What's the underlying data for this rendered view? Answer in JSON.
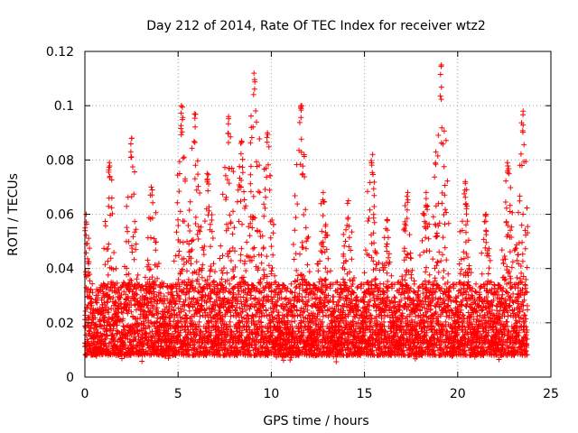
{
  "chart_data": {
    "type": "scatter",
    "title": "Day 212 of 2014, Rate Of TEC Index for receiver wtz2",
    "xlabel": "GPS time / hours",
    "ylabel": "ROTI / TECUs",
    "xlim": [
      0,
      25
    ],
    "ylim": [
      0,
      0.12
    ],
    "x_ticks": [
      0,
      5,
      10,
      15,
      20,
      25
    ],
    "x_tick_labels": [
      "0",
      "5",
      "10",
      "15",
      "20",
      "25"
    ],
    "y_ticks": [
      0,
      0.02,
      0.04,
      0.06,
      0.08,
      0.1,
      0.12
    ],
    "y_tick_labels": [
      "0",
      "0.02",
      "0.04",
      "0.06",
      "0.08",
      "0.1",
      "0.12"
    ],
    "grid": true,
    "series": [
      {
        "name": "ROTI",
        "marker": "+",
        "color": "#ff0000",
        "x_range": [
          0,
          23.75
        ],
        "baseline_typical": [
          0.008,
          0.035
        ],
        "peaks": [
          {
            "x": 0.05,
            "y": 0.06
          },
          {
            "x": 1.3,
            "y": 0.079
          },
          {
            "x": 2.5,
            "y": 0.088
          },
          {
            "x": 3.6,
            "y": 0.07
          },
          {
            "x": 5.2,
            "y": 0.1
          },
          {
            "x": 5.9,
            "y": 0.097
          },
          {
            "x": 6.6,
            "y": 0.075
          },
          {
            "x": 7.7,
            "y": 0.096
          },
          {
            "x": 8.4,
            "y": 0.087
          },
          {
            "x": 9.1,
            "y": 0.112
          },
          {
            "x": 9.8,
            "y": 0.09
          },
          {
            "x": 11.6,
            "y": 0.1
          },
          {
            "x": 12.8,
            "y": 0.068
          },
          {
            "x": 14.1,
            "y": 0.065
          },
          {
            "x": 15.4,
            "y": 0.082
          },
          {
            "x": 16.2,
            "y": 0.058
          },
          {
            "x": 17.3,
            "y": 0.068
          },
          {
            "x": 18.3,
            "y": 0.068
          },
          {
            "x": 19.1,
            "y": 0.115
          },
          {
            "x": 20.4,
            "y": 0.072
          },
          {
            "x": 21.5,
            "y": 0.06
          },
          {
            "x": 22.7,
            "y": 0.079
          },
          {
            "x": 23.5,
            "y": 0.098
          }
        ]
      }
    ]
  }
}
